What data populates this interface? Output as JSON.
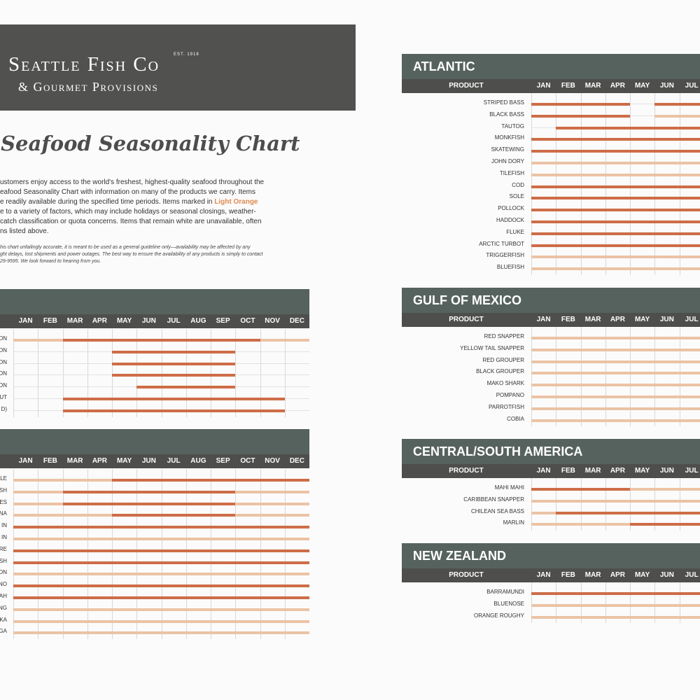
{
  "brand": {
    "name": "Seattle Fish Co",
    "est": "EST. 1918",
    "tagline": "& Gourmet Provisions"
  },
  "title": "l Seafood Seasonality Chart",
  "intro": [
    {
      "text": "ustomers enjoy access to the world's freshest, highest-quality seafood throughout the"
    },
    {
      "text": "eafood Seasonality Chart with information on many of the products we carry. Items"
    },
    {
      "text": "e readily available during the specified time periods. Items marked in ",
      "highlight": "Light Orange"
    },
    {
      "text": "e to a variety of factors, which may include holidays or seasonal closings, weather-"
    },
    {
      "text": "catch classification or quota concerns. Items that remain white are unavailable, often"
    },
    {
      "text": "ns listed above."
    }
  ],
  "disclaimer": [
    "his chart unfailingly accurate, it is meant to be used as a general guideline only—availability may be affected by any",
    "ght delays, lost shipments and power outages. The best way to ensure the availability of any products is simply to contact",
    "29-9595. We look forward to hearing from you."
  ],
  "colors": {
    "available": "#cd6d47",
    "limited": "#ecc3a4",
    "header": "#56625e",
    "subheader": "#4e4f4c"
  },
  "months": [
    "JAN",
    "FEB",
    "MAR",
    "APR",
    "MAY",
    "JUN",
    "JUL",
    "AUG",
    "SEP",
    "OCT",
    "NOV",
    "DEC"
  ],
  "sections": [
    {
      "id": "left-1",
      "title": "",
      "product_label": "",
      "rows": [
        {
          "label": "ON",
          "segs": [
            [
              0,
              2,
              "l"
            ],
            [
              2,
              10,
              "a"
            ],
            [
              10,
              12,
              "l"
            ]
          ]
        },
        {
          "label": "ON",
          "segs": [
            [
              4,
              9,
              "a"
            ]
          ]
        },
        {
          "label": "ON",
          "segs": [
            [
              4,
              9,
              "a"
            ]
          ]
        },
        {
          "label": "ON",
          "segs": [
            [
              4,
              9,
              "a"
            ]
          ]
        },
        {
          "label": "ON",
          "segs": [
            [
              5,
              9,
              "a"
            ]
          ]
        },
        {
          "label": "UT",
          "segs": [
            [
              2,
              11,
              "a"
            ]
          ]
        },
        {
          "label": "D)",
          "segs": [
            [
              2,
              11,
              "a"
            ]
          ]
        }
      ]
    },
    {
      "id": "left-2",
      "title": "",
      "product_label": "",
      "rows": [
        {
          "label": "LE",
          "segs": [
            [
              0,
              4,
              "l"
            ],
            [
              4,
              12,
              "a"
            ]
          ]
        },
        {
          "label": "SH",
          "segs": [
            [
              0,
              2,
              "l"
            ],
            [
              2,
              9,
              "a"
            ],
            [
              9,
              12,
              "l"
            ]
          ]
        },
        {
          "label": "ES",
          "segs": [
            [
              0,
              2,
              "l"
            ],
            [
              2,
              9,
              "a"
            ],
            [
              9,
              12,
              "l"
            ]
          ]
        },
        {
          "label": "NA",
          "segs": [
            [
              0,
              4,
              "l"
            ],
            [
              4,
              9,
              "a"
            ],
            [
              9,
              12,
              "l"
            ]
          ]
        },
        {
          "label": "IN",
          "segs": [
            [
              0,
              12,
              "a"
            ]
          ]
        },
        {
          "label": "IN",
          "segs": [
            [
              0,
              12,
              "l"
            ]
          ]
        },
        {
          "label": "RE",
          "segs": [
            [
              0,
              12,
              "a"
            ]
          ]
        },
        {
          "label": "SH",
          "segs": [
            [
              0,
              12,
              "a"
            ]
          ]
        },
        {
          "label": "ON",
          "segs": [
            [
              0,
              12,
              "l"
            ]
          ]
        },
        {
          "label": "NO",
          "segs": [
            [
              0,
              12,
              "a"
            ]
          ]
        },
        {
          "label": "AH",
          "segs": [
            [
              0,
              12,
              "a"
            ]
          ]
        },
        {
          "label": "NG",
          "segs": [
            [
              0,
              12,
              "l"
            ]
          ]
        },
        {
          "label": "KA",
          "segs": [
            [
              0,
              12,
              "l"
            ]
          ]
        },
        {
          "label": "GA",
          "segs": [
            [
              0,
              12,
              "l"
            ]
          ]
        }
      ]
    },
    {
      "id": "atlantic",
      "title": "ATLANTIC",
      "product_label": "PRODUCT",
      "rows": [
        {
          "label": "STRIPED BASS",
          "segs": [
            [
              0,
              4,
              "a"
            ],
            [
              5,
              7,
              "a"
            ]
          ]
        },
        {
          "label": "BLACK BASS",
          "segs": [
            [
              0,
              4,
              "a"
            ],
            [
              5,
              7,
              "l"
            ]
          ]
        },
        {
          "label": "TAUTOG",
          "segs": [
            [
              1,
              7,
              "a"
            ]
          ]
        },
        {
          "label": "MONKFISH",
          "segs": [
            [
              0,
              7,
              "a"
            ]
          ]
        },
        {
          "label": "SKATEWING",
          "segs": [
            [
              0,
              7,
              "a"
            ]
          ]
        },
        {
          "label": "JOHN DORY",
          "segs": [
            [
              0,
              7,
              "l"
            ]
          ]
        },
        {
          "label": "TILEFISH",
          "segs": [
            [
              0,
              7,
              "l"
            ]
          ]
        },
        {
          "label": "COD",
          "segs": [
            [
              0,
              7,
              "a"
            ]
          ]
        },
        {
          "label": "SOLE",
          "segs": [
            [
              0,
              7,
              "a"
            ]
          ]
        },
        {
          "label": "POLLOCK",
          "segs": [
            [
              0,
              7,
              "a"
            ]
          ]
        },
        {
          "label": "HADDOCK",
          "segs": [
            [
              0,
              7,
              "a"
            ]
          ]
        },
        {
          "label": "FLUKE",
          "segs": [
            [
              0,
              7,
              "a"
            ]
          ]
        },
        {
          "label": "ARCTIC TURBOT",
          "segs": [
            [
              0,
              7,
              "a"
            ]
          ]
        },
        {
          "label": "TRIGGERFISH",
          "segs": [
            [
              0,
              7,
              "l"
            ]
          ]
        },
        {
          "label": "BLUEFISH",
          "segs": [
            [
              0,
              7,
              "l"
            ]
          ]
        }
      ]
    },
    {
      "id": "gulf",
      "title": "GULF OF MEXICO",
      "product_label": "PRODUCT",
      "rows": [
        {
          "label": "RED SNAPPER",
          "segs": [
            [
              0,
              7,
              "l"
            ]
          ]
        },
        {
          "label": "YELLOW TAIL SNAPPER",
          "segs": [
            [
              0,
              7,
              "l"
            ]
          ]
        },
        {
          "label": "RED GROUPER",
          "segs": [
            [
              0,
              7,
              "l"
            ]
          ]
        },
        {
          "label": "BLACK GROUPER",
          "segs": [
            [
              0,
              7,
              "l"
            ]
          ]
        },
        {
          "label": "MAKO SHARK",
          "segs": [
            [
              0,
              7,
              "l"
            ]
          ]
        },
        {
          "label": "POMPANO",
          "segs": [
            [
              0,
              7,
              "l"
            ]
          ]
        },
        {
          "label": "PARROTFISH",
          "segs": [
            [
              0,
              7,
              "l"
            ]
          ]
        },
        {
          "label": "COBIA",
          "segs": [
            [
              0,
              7,
              "l"
            ]
          ]
        }
      ]
    },
    {
      "id": "central",
      "title": "CENTRAL/SOUTH AMERICA",
      "product_label": "PRODUCT",
      "rows": [
        {
          "label": "MAHI MAHI",
          "segs": [
            [
              0,
              4,
              "a"
            ],
            [
              4,
              7,
              "l"
            ]
          ]
        },
        {
          "label": "CARIBBEAN SNAPPER",
          "segs": [
            [
              0,
              7,
              "l"
            ]
          ]
        },
        {
          "label": "CHILEAN SEA BASS",
          "segs": [
            [
              0,
              1,
              "l"
            ],
            [
              1,
              7,
              "a"
            ]
          ]
        },
        {
          "label": "MARLIN",
          "segs": [
            [
              0,
              4,
              "l"
            ],
            [
              4,
              7,
              "a"
            ]
          ]
        }
      ]
    },
    {
      "id": "nz",
      "title": "NEW ZEALAND",
      "product_label": "PRODUCT",
      "rows": [
        {
          "label": "BARRAMUNDI",
          "segs": [
            [
              0,
              7,
              "a"
            ]
          ]
        },
        {
          "label": "BLUENOSE",
          "segs": [
            [
              0,
              7,
              "l"
            ]
          ]
        },
        {
          "label": "ORANGE ROUGHY",
          "segs": [
            [
              0,
              7,
              "l"
            ]
          ]
        }
      ]
    }
  ]
}
